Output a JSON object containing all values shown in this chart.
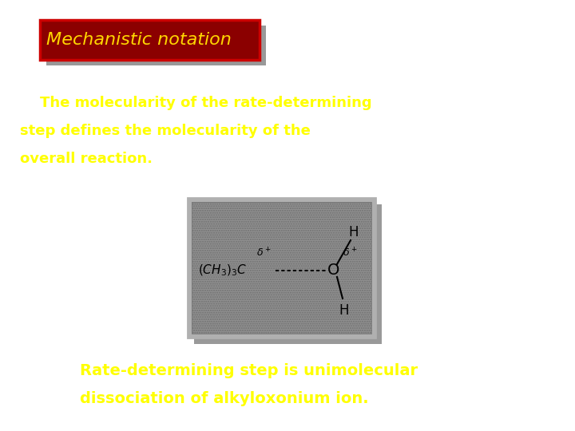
{
  "bg_color": "#ffffff",
  "title_text": "Mechanistic notation",
  "title_bg": "#8B0000",
  "title_fg": "#FFD700",
  "title_border": "#CC0000",
  "shadow_color": "#999999",
  "body_text_line1": "    The molecularity of the rate-determining",
  "body_text_line2": "step defines the molecularity of the",
  "body_text_line3": "overall reaction.",
  "body_fg": "#FFFF00",
  "bottom_line1": "Rate-determining step is unimolecular",
  "bottom_line2": "dissociation of alkyloxonium ion.",
  "img_border_color": "#b0b0b0",
  "img_inner_color": "#808080"
}
